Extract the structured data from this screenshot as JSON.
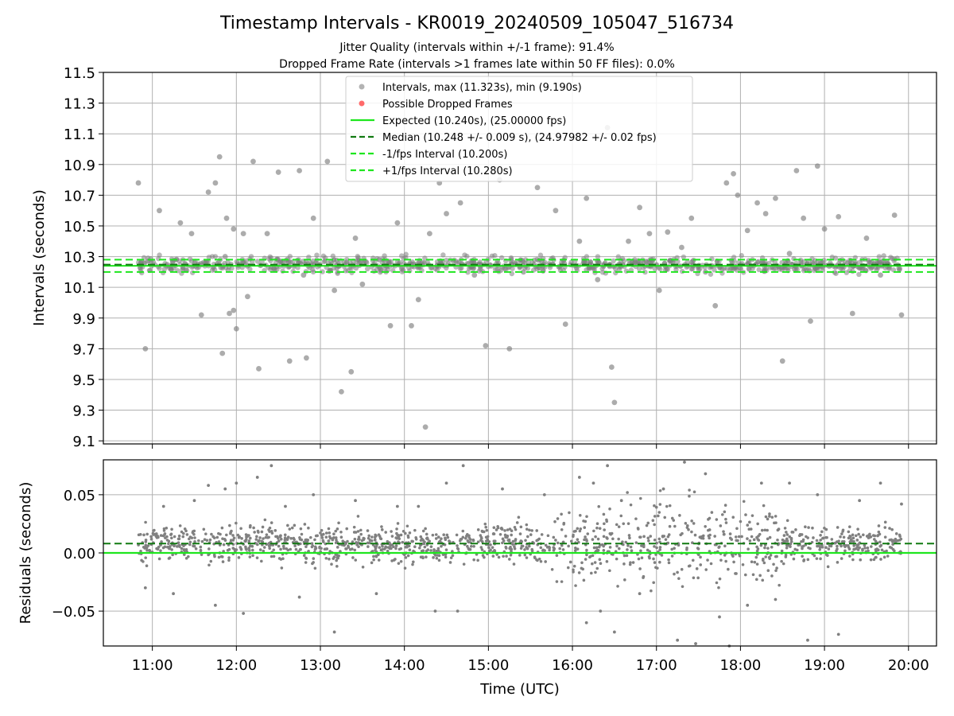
{
  "figure": {
    "title": "Timestamp Intervals - KR0019_20240509_105047_516734",
    "subtitle_1": "Jitter Quality (intervals within +/-1 frame): 91.4%",
    "subtitle_2": "Dropped Frame Rate (intervals >1 frames late within 50 FF files): 0.0%"
  },
  "colors": {
    "points": "#808080",
    "dropped": "#ff5a5a",
    "expected": "#1ee61e",
    "median": "#117a11",
    "interval": "#1ee61e",
    "grid": "#b0b0b0"
  },
  "chart_data": [
    {
      "type": "scatter",
      "ylabel": "Intervals (seconds)",
      "ylim": [
        9.08,
        11.5
      ],
      "yticks": [
        9.1,
        9.3,
        9.5,
        9.7,
        9.9,
        10.1,
        10.3,
        10.5,
        10.7,
        10.9,
        11.1,
        11.3,
        11.5
      ],
      "xlim": [
        "10:25",
        "20:20"
      ],
      "grid": true,
      "legend_placement": "top-center",
      "legend": [
        "Intervals, max (11.323s), min (9.190s)",
        "Possible Dropped Frames",
        "Expected (10.240s), (25.00000 fps)",
        "Median (10.248 +/- 0.009 s), (24.97982 +/- 0.02 fps)",
        "-1/fps Interval (10.200s)",
        "+1/fps Interval (10.280s)"
      ],
      "expected": 10.24,
      "median": 10.248,
      "lower_interval": 10.2,
      "upper_interval": 10.28,
      "max": 11.323,
      "min": 9.19,
      "series": [
        {
          "name": "Intervals",
          "x": [
            "10:50",
            "10:55",
            "11:05",
            "11:20",
            "11:28",
            "11:35",
            "11:40",
            "11:45",
            "11:48",
            "11:50",
            "11:52",
            "11:53",
            "11:55",
            "11:58",
            "12:00",
            "12:05",
            "12:08",
            "12:12",
            "12:16",
            "12:22",
            "12:30",
            "12:38",
            "12:45",
            "12:50",
            "12:55",
            "13:05",
            "13:10",
            "13:15",
            "13:25",
            "13:30",
            "13:42",
            "13:50",
            "13:55",
            "14:05",
            "14:10",
            "14:18",
            "14:25",
            "14:30",
            "14:40",
            "14:50",
            "14:58",
            "15:08",
            "15:15",
            "15:25",
            "15:35",
            "15:48",
            "15:55",
            "16:05",
            "16:10",
            "16:18",
            "16:25",
            "16:30",
            "16:40",
            "16:48",
            "16:55",
            "17:02",
            "17:08",
            "17:18",
            "17:25",
            "17:35",
            "17:42",
            "17:50",
            "17:58",
            "18:05",
            "18:12",
            "18:18",
            "18:25",
            "18:30",
            "18:35",
            "18:40",
            "18:45",
            "18:50",
            "18:55",
            "19:00",
            "19:10",
            "19:20",
            "19:30",
            "19:40",
            "19:50",
            "19:55",
            "11:58",
            "12:48",
            "13:22",
            "14:15",
            "16:28",
            "17:55"
          ],
          "y": [
            10.78,
            9.7,
            10.6,
            10.52,
            10.45,
            9.92,
            10.72,
            10.78,
            10.95,
            9.67,
            10.3,
            10.55,
            9.93,
            10.48,
            9.83,
            10.45,
            10.04,
            10.92,
            9.57,
            10.45,
            10.85,
            9.62,
            10.86,
            9.64,
            10.55,
            10.92,
            10.08,
            9.42,
            10.42,
            10.12,
            10.28,
            9.85,
            10.52,
            9.85,
            10.02,
            10.45,
            10.78,
            10.58,
            10.65,
            10.18,
            9.72,
            10.8,
            9.7,
            10.2,
            10.75,
            10.6,
            9.86,
            10.4,
            10.68,
            10.15,
            11.14,
            9.35,
            10.4,
            10.62,
            10.45,
            10.08,
            10.46,
            10.36,
            10.55,
            10.2,
            9.98,
            10.78,
            10.7,
            10.47,
            10.65,
            10.58,
            10.68,
            9.62,
            10.32,
            10.86,
            10.55,
            9.88,
            10.89,
            10.48,
            10.56,
            9.93,
            10.42,
            10.18,
            10.57,
            9.92,
            9.95,
            10.18,
            9.55,
            9.19,
            9.58,
            10.84
          ]
        }
      ]
    },
    {
      "type": "scatter",
      "xlabel": "Time (UTC)",
      "ylabel": "Residuals (seconds)",
      "ylim": [
        -0.08,
        0.08
      ],
      "yticks": [
        -0.05,
        0.0,
        0.05
      ],
      "ytick_labels": [
        "−0.05",
        "0.00",
        "0.05"
      ],
      "xticks": [
        "11:00",
        "12:00",
        "13:00",
        "14:00",
        "15:00",
        "16:00",
        "17:00",
        "18:00",
        "19:00",
        "20:00"
      ],
      "xlim": [
        "10:25",
        "20:20"
      ],
      "grid": true,
      "expected": 0.0,
      "median": 0.008,
      "series": [
        {
          "name": "Residuals",
          "x": [
            "10:55",
            "11:08",
            "11:15",
            "11:30",
            "11:40",
            "11:45",
            "11:52",
            "12:00",
            "12:05",
            "12:15",
            "12:25",
            "12:35",
            "12:45",
            "12:55",
            "13:10",
            "13:25",
            "13:40",
            "13:55",
            "14:10",
            "14:22",
            "14:30",
            "14:38",
            "14:42",
            "15:10",
            "15:40",
            "16:05",
            "16:10",
            "16:15",
            "16:20",
            "16:25",
            "16:30",
            "16:35",
            "16:48",
            "17:05",
            "17:15",
            "17:20",
            "17:28",
            "17:35",
            "17:45",
            "17:52",
            "18:05",
            "18:15",
            "18:25",
            "18:35",
            "18:48",
            "18:55",
            "19:10",
            "19:25",
            "19:40",
            "19:55"
          ],
          "y": [
            -0.03,
            0.04,
            -0.035,
            0.045,
            0.058,
            -0.045,
            0.055,
            0.06,
            -0.052,
            0.065,
            0.075,
            0.04,
            -0.038,
            0.05,
            -0.068,
            0.045,
            -0.035,
            0.04,
            0.04,
            -0.05,
            0.06,
            -0.05,
            0.075,
            0.055,
            0.05,
            0.065,
            -0.06,
            0.06,
            -0.05,
            0.075,
            -0.068,
            0.045,
            -0.035,
            0.055,
            -0.075,
            0.078,
            -0.078,
            0.068,
            -0.055,
            -0.08,
            -0.045,
            0.06,
            -0.04,
            0.06,
            -0.075,
            0.05,
            -0.07,
            0.045,
            0.06,
            0.042
          ]
        }
      ]
    }
  ]
}
